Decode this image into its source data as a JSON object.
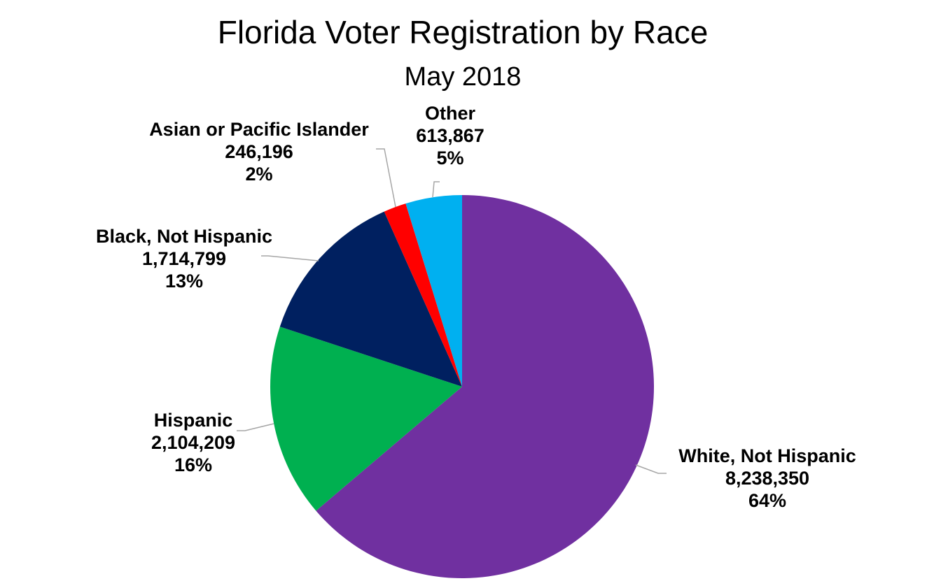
{
  "chart_data": {
    "type": "pie",
    "title": "Florida Voter Registration by Race",
    "subtitle": "May 2018",
    "start_angle_deg": 0,
    "direction": "clockwise",
    "slices": [
      {
        "name": "White, Not Hispanic",
        "value": 8238350,
        "value_label": "8,238,350",
        "percent_label": "64%",
        "color": "#7030a0"
      },
      {
        "name": "Hispanic",
        "value": 2104209,
        "value_label": "2,104,209",
        "percent_label": "16%",
        "color": "#00b050"
      },
      {
        "name": "Black, Not Hispanic",
        "value": 1714799,
        "value_label": "1,714,799",
        "percent_label": "13%",
        "color": "#002060"
      },
      {
        "name": "Asian or Pacific Islander",
        "value": 246196,
        "value_label": "246,196",
        "percent_label": "2%",
        "color": "#ff0000"
      },
      {
        "name": "Other",
        "value": 613867,
        "value_label": "613,867",
        "percent_label": "5%",
        "color": "#00b0f0"
      }
    ]
  }
}
